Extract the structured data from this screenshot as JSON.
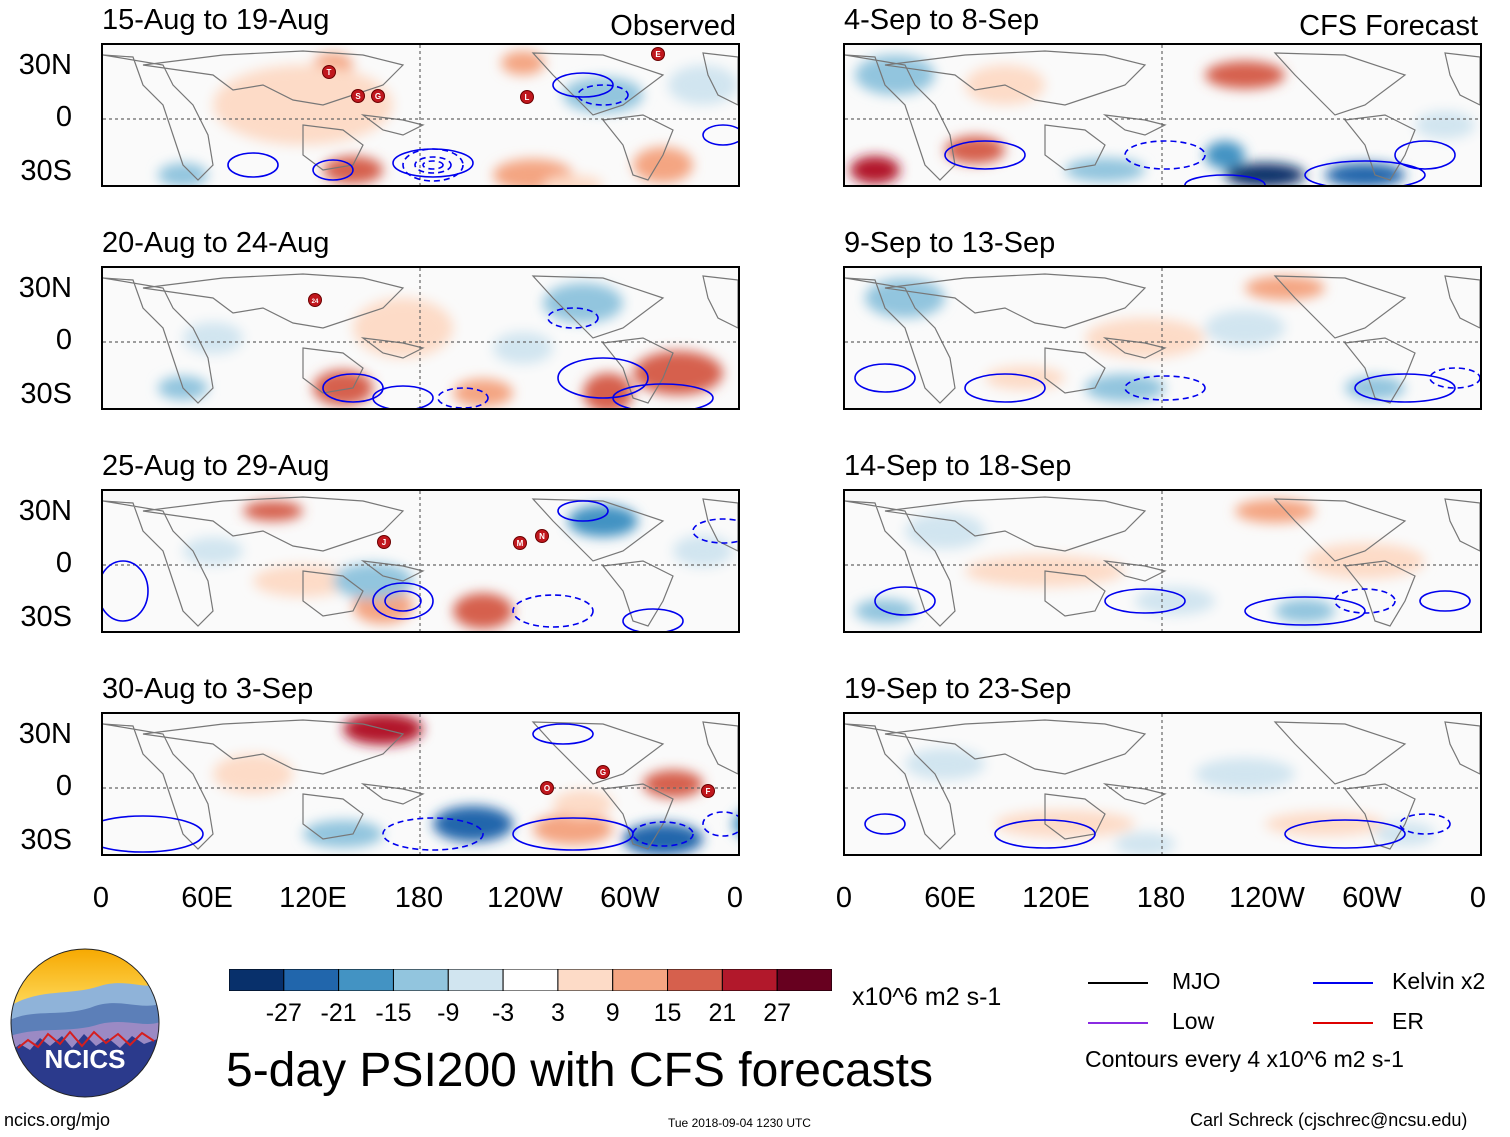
{
  "panels": [
    {
      "period": "15-Aug to 19-Aug",
      "label": "Observed",
      "storms": [
        "T",
        "S",
        "G",
        "L",
        "E"
      ]
    },
    {
      "period": "20-Aug to 24-Aug",
      "label": "",
      "storms": [
        "24"
      ]
    },
    {
      "period": "25-Aug to 29-Aug",
      "label": "",
      "storms": [
        "J",
        "M",
        "N"
      ]
    },
    {
      "period": "30-Aug to 3-Sep",
      "label": "",
      "storms": [
        "O",
        "G",
        "F"
      ]
    },
    {
      "period": "4-Sep to 8-Sep",
      "label": "CFS Forecast",
      "storms": []
    },
    {
      "period": "9-Sep to 13-Sep",
      "label": "",
      "storms": []
    },
    {
      "period": "14-Sep to 18-Sep",
      "label": "",
      "storms": []
    },
    {
      "period": "19-Sep to 23-Sep",
      "label": "",
      "storms": []
    }
  ],
  "y_axis": [
    "30N",
    "0",
    "30S"
  ],
  "x_axis": [
    "0",
    "60E",
    "120E",
    "180",
    "120W",
    "60W",
    "0"
  ],
  "colorbar": {
    "ticks": [
      "-27",
      "-21",
      "-15",
      "-9",
      "-3",
      "3",
      "9",
      "15",
      "21",
      "27"
    ],
    "units": "x10^6 m2 s-1",
    "colors": [
      "#08306b",
      "#2166ac",
      "#4393c3",
      "#92c5de",
      "#d1e5f0",
      "#ffffff",
      "#fddbc7",
      "#f4a582",
      "#d6604d",
      "#b2182b",
      "#67001f"
    ]
  },
  "legend": {
    "mjo": "MJO",
    "mjo_color": "#000000",
    "kelvin": "Kelvin x2",
    "kelvin_color": "#0000ee",
    "low": "Low",
    "low_color": "#8a2be2",
    "er": "ER",
    "er_color": "#dd0000",
    "contours": "Contours every 4 x10^6 m2 s-1"
  },
  "title": "5-day PSI200 with CFS forecasts",
  "logo": {
    "name": "NCICS"
  },
  "footer": {
    "url": "ncics.org/mjo",
    "timestamp": "Tue 2018-09-04 1230 UTC",
    "credit": "Carl Schreck (cjschrec@ncsu.edu)"
  }
}
